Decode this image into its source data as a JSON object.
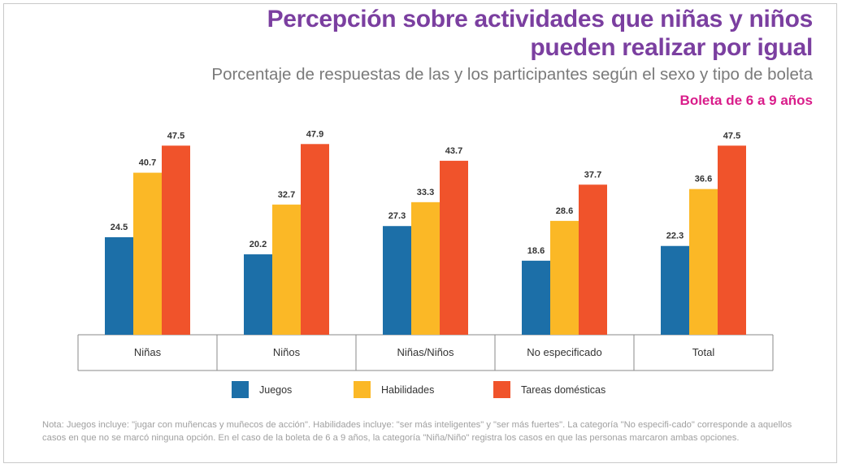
{
  "header": {
    "title_line1": "Percepción sobre actividades que niñas y niños",
    "title_line2": "pueden realizar por igual",
    "subtitle": "Porcentaje de respuestas de las y los participantes según el sexo y tipo de boleta",
    "tag": "Boleta de 6 a 9 años"
  },
  "chart_data": {
    "type": "bar",
    "categories": [
      "Niñas",
      "Niños",
      "Niñas/Niños",
      "No especificado",
      "Total"
    ],
    "series": [
      {
        "name": "Juegos",
        "color": "#1c6fa8",
        "values": [
          24.5,
          20.2,
          27.3,
          18.6,
          22.3
        ]
      },
      {
        "name": "Habilidades",
        "color": "#fbb826",
        "values": [
          40.7,
          32.7,
          33.3,
          28.6,
          36.6
        ]
      },
      {
        "name": "Tareas domésticas",
        "color": "#f0532b",
        "values": [
          47.5,
          47.9,
          43.7,
          37.7,
          47.5
        ]
      }
    ],
    "ylim": [
      0,
      50
    ],
    "grid": false,
    "legend_position": "bottom",
    "data_labels": true
  },
  "note": "Nota: Juegos incluye: \"jugar con muñencas y muñecos de acción\". Habilidades incluye: \"ser más inteligentes\" y \"ser más fuertes\". La categoría \"No especifi-cado\" corresponde a aquellos casos en que no se marcó ninguna opción. En el caso de la boleta de 6 a 9 años, la categoría \"Niña/Niño\" registra los casos en que las personas marcaron ambas opciones."
}
